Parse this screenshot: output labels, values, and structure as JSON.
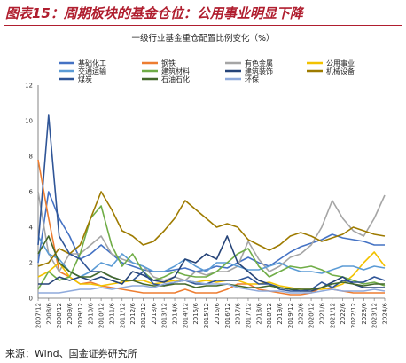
{
  "figure": {
    "label": "图表15：周期板块的基金仓位：公用事业明显下降",
    "source": "来源：Wind、国金证券研究所"
  },
  "chart_data": {
    "type": "line",
    "title": "一级行业基金重仓配置比例变化（%）",
    "xlabel": "",
    "ylabel": "",
    "ylim": [
      0,
      12
    ],
    "yticks": [
      0,
      2,
      4,
      6,
      8,
      10,
      12
    ],
    "grid": false,
    "legend": "top",
    "x": [
      "2007/12",
      "2008/6",
      "2008/12",
      "2009/6",
      "2009/12",
      "2010/6",
      "2010/12",
      "2011/6",
      "2011/12",
      "2012/6",
      "2012/12",
      "2013/6",
      "2013/12",
      "2014/6",
      "2014/12",
      "2015/6",
      "2015/12",
      "2016/6",
      "2016/12",
      "2017/6",
      "2017/12",
      "2018/6",
      "2018/12",
      "2019/6",
      "2019/12",
      "2020/6",
      "2020/12",
      "2021/6",
      "2021/12",
      "2022/6",
      "2022/12",
      "2023/6",
      "2023/12",
      "2024/6"
    ],
    "series": [
      {
        "name": "基础化工",
        "color": "#4472c4",
        "values": [
          2.0,
          6.0,
          4.5,
          3.5,
          2.2,
          2.5,
          3.0,
          2.5,
          2.0,
          1.8,
          1.6,
          1.5,
          1.5,
          1.6,
          1.7,
          1.5,
          1.6,
          1.8,
          1.7,
          2.0,
          2.3,
          2.0,
          1.8,
          2.2,
          2.6,
          2.9,
          3.1,
          3.3,
          3.6,
          3.4,
          3.3,
          3.2,
          3.0,
          3.0
        ]
      },
      {
        "name": "钢铁",
        "color": "#ed7d31",
        "values": [
          7.8,
          4.5,
          1.5,
          1.2,
          0.8,
          0.9,
          0.7,
          0.6,
          0.5,
          0.4,
          0.3,
          0.3,
          0.3,
          0.3,
          0.5,
          0.3,
          0.3,
          0.3,
          0.5,
          0.8,
          0.8,
          0.5,
          0.4,
          0.3,
          0.2,
          0.2,
          0.3,
          0.6,
          0.5,
          0.4,
          0.3,
          0.3,
          0.3,
          0.3
        ]
      },
      {
        "name": "有色金属",
        "color": "#a5a5a5",
        "values": [
          6.0,
          2.5,
          1.5,
          2.5,
          2.5,
          3.0,
          3.5,
          2.5,
          2.2,
          2.0,
          1.8,
          1.2,
          1.0,
          1.2,
          1.0,
          1.5,
          1.3,
          1.5,
          1.5,
          1.8,
          3.2,
          2.2,
          1.5,
          1.8,
          2.3,
          2.5,
          3.0,
          4.0,
          5.5,
          4.5,
          3.8,
          3.5,
          4.5,
          5.8
        ]
      },
      {
        "name": "公用事业",
        "color": "#f2c200",
        "values": [
          1.2,
          1.5,
          2.0,
          1.2,
          0.8,
          0.8,
          0.7,
          0.8,
          0.9,
          1.0,
          1.0,
          0.8,
          0.9,
          1.0,
          1.0,
          0.9,
          1.0,
          0.9,
          1.0,
          1.0,
          0.8,
          0.8,
          0.9,
          0.7,
          0.6,
          0.5,
          0.5,
          0.5,
          0.6,
          0.8,
          1.3,
          2.0,
          2.6,
          1.8
        ]
      },
      {
        "name": "交通运输",
        "color": "#5b9bd5",
        "values": [
          3.5,
          2.5,
          2.2,
          1.5,
          1.2,
          1.5,
          2.0,
          1.8,
          2.5,
          2.0,
          1.8,
          1.5,
          1.5,
          1.8,
          2.2,
          1.8,
          1.5,
          2.0,
          2.0,
          1.8,
          1.6,
          1.6,
          1.8,
          2.0,
          1.7,
          1.5,
          1.5,
          1.4,
          1.6,
          1.8,
          1.8,
          1.6,
          1.8,
          1.7
        ]
      },
      {
        "name": "建筑材料",
        "color": "#70ad47",
        "values": [
          0.5,
          1.5,
          1.0,
          1.2,
          2.5,
          4.5,
          5.2,
          3.0,
          1.8,
          2.5,
          1.5,
          1.0,
          1.2,
          1.5,
          1.3,
          1.2,
          1.2,
          1.5,
          2.0,
          2.5,
          2.8,
          1.8,
          1.2,
          1.5,
          1.8,
          1.7,
          1.8,
          1.6,
          1.3,
          1.2,
          1.0,
          0.8,
          0.9,
          0.7
        ]
      },
      {
        "name": "建筑装饰",
        "color": "#264478",
        "values": [
          0.8,
          0.8,
          1.2,
          1.0,
          1.2,
          1.0,
          1.2,
          1.0,
          0.8,
          1.5,
          1.3,
          1.0,
          0.9,
          1.2,
          2.2,
          2.0,
          2.5,
          2.2,
          3.5,
          2.0,
          1.5,
          1.0,
          0.8,
          0.6,
          0.5,
          0.4,
          0.4,
          0.6,
          0.9,
          1.2,
          0.8,
          0.6,
          0.6,
          0.6
        ]
      },
      {
        "name": "机械设备",
        "color": "#9e7b00",
        "values": [
          1.8,
          2.0,
          2.8,
          2.5,
          3.0,
          4.5,
          6.0,
          5.0,
          3.8,
          3.5,
          3.0,
          3.2,
          3.8,
          4.5,
          5.5,
          5.0,
          4.5,
          4.0,
          4.2,
          4.0,
          3.3,
          3.0,
          2.7,
          3.0,
          3.5,
          3.7,
          3.5,
          3.2,
          3.4,
          3.6,
          4.0,
          3.8,
          3.6,
          3.5
        ]
      },
      {
        "name": "煤炭",
        "color": "#2f5597",
        "values": [
          3.0,
          10.3,
          3.5,
          2.5,
          2.2,
          1.5,
          1.5,
          1.2,
          1.0,
          1.0,
          1.5,
          0.8,
          0.7,
          0.9,
          1.0,
          0.8,
          0.8,
          1.0,
          1.0,
          1.0,
          1.2,
          0.8,
          0.8,
          0.5,
          0.4,
          0.4,
          0.5,
          0.9,
          0.6,
          1.0,
          0.9,
          0.9,
          1.2,
          1.0
        ]
      },
      {
        "name": "石油石化",
        "color": "#43682b",
        "values": [
          2.5,
          3.5,
          2.0,
          1.5,
          1.2,
          1.2,
          1.5,
          1.2,
          1.0,
          1.0,
          0.8,
          0.7,
          0.7,
          0.8,
          0.8,
          0.6,
          0.7,
          0.7,
          0.8,
          0.7,
          0.6,
          0.6,
          0.7,
          0.6,
          0.5,
          0.5,
          0.5,
          0.6,
          0.8,
          0.9,
          0.8,
          0.7,
          0.8,
          0.8
        ]
      },
      {
        "name": "环保",
        "color": "#8faadc",
        "values": [
          0.3,
          0.3,
          0.3,
          0.4,
          0.5,
          0.5,
          0.6,
          0.5,
          0.6,
          0.7,
          0.7,
          0.6,
          0.8,
          0.9,
          1.0,
          0.9,
          0.8,
          0.8,
          0.8,
          0.6,
          0.5,
          0.4,
          0.4,
          0.4,
          0.3,
          0.3,
          0.3,
          0.4,
          0.5,
          0.4,
          0.4,
          0.4,
          0.5,
          0.4
        ]
      }
    ]
  }
}
